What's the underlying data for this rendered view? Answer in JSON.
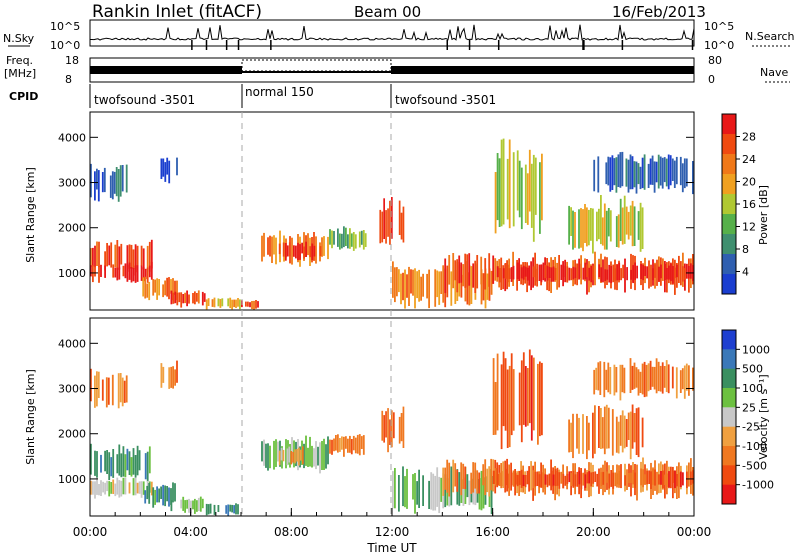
{
  "header": {
    "title": "Rankin Inlet (fitACF)",
    "beam": "Beam 00",
    "date": "16/Feb/2013"
  },
  "noise_panel": {
    "left_label": "N.Sky",
    "right_label": "N.Search",
    "left_ticks": [
      "10^5",
      "10^0"
    ],
    "right_ticks": [
      "10^5",
      "10^0"
    ]
  },
  "freq_panel": {
    "left_label_line1": "Freq.",
    "left_label_line2": "[MHz]",
    "right_label": "Nave",
    "left_ticks": [
      "18",
      "8"
    ],
    "right_ticks": [
      "80",
      "0"
    ]
  },
  "cpid": {
    "label": "CPID",
    "segments": [
      {
        "name": "twofsound -3501",
        "start_hour": 0,
        "end_hour": 6
      },
      {
        "name": "normal 150",
        "start_hour": 6,
        "end_hour": 12
      },
      {
        "name": "twofsound -3501",
        "start_hour": 12,
        "end_hour": 24
      }
    ]
  },
  "colors": {
    "power": [
      "#1a3ecf",
      "#2f5fb0",
      "#3f8f6f",
      "#56b04a",
      "#b0c832",
      "#f0a020",
      "#f07818",
      "#f04a10",
      "#e81818"
    ],
    "velocity": [
      "#1e3fd0",
      "#3a78b8",
      "#3a8f60",
      "#6cc040",
      "#c8c8c8",
      "#f0a040",
      "#f07820",
      "#f04a10",
      "#e81818"
    ]
  },
  "chart_data": [
    {
      "type": "heatmap",
      "panel": "power",
      "ylabel": "Slant Range [km]",
      "yticks": [
        1000,
        2000,
        3000,
        4000
      ],
      "ylim": [
        180,
        4560
      ],
      "xlim": [
        0,
        24
      ],
      "colorbar_label": "Power [dB]",
      "colorbar_ticks": [
        "4",
        "8",
        "12",
        "16",
        "20",
        "24",
        "28"
      ],
      "patches": [
        {
          "x": [
            0.0,
            2.5
          ],
          "y": [
            1000,
            1700
          ],
          "level": 7
        },
        {
          "x": [
            0.0,
            2.5
          ],
          "y": [
            800,
            1200
          ],
          "level": 8
        },
        {
          "x": [
            2.0,
            3.5
          ],
          "y": [
            400,
            900
          ],
          "level": 6
        },
        {
          "x": [
            3.2,
            4.6
          ],
          "y": [
            250,
            600
          ],
          "level": 7
        },
        {
          "x": [
            4.6,
            6.0
          ],
          "y": [
            200,
            450
          ],
          "level": 5
        },
        {
          "x": [
            6.0,
            6.8
          ],
          "y": [
            200,
            400
          ],
          "level": 7
        },
        {
          "x": [
            6.8,
            9.5
          ],
          "y": [
            1200,
            1900
          ],
          "level": 6
        },
        {
          "x": [
            7.5,
            9.2
          ],
          "y": [
            1300,
            1700
          ],
          "level": 8
        },
        {
          "x": [
            9.5,
            11.0
          ],
          "y": [
            1500,
            2000
          ],
          "level": 3
        },
        {
          "x": [
            11.5,
            12.5
          ],
          "y": [
            1600,
            2600
          ],
          "level": 7
        },
        {
          "x": [
            12.0,
            16.0
          ],
          "y": [
            300,
            1200
          ],
          "level": 6
        },
        {
          "x": [
            14.0,
            24.0
          ],
          "y": [
            600,
            1400
          ],
          "level": 7
        },
        {
          "x": [
            16.0,
            24.0
          ],
          "y": [
            800,
            1200
          ],
          "level": 8
        },
        {
          "x": [
            0.0,
            1.5
          ],
          "y": [
            2600,
            3400
          ],
          "level": 1
        },
        {
          "x": [
            2.8,
            3.5
          ],
          "y": [
            3000,
            3600
          ],
          "level": 1
        },
        {
          "x": [
            16.0,
            18.0
          ],
          "y": [
            1800,
            3800
          ],
          "level": 4
        },
        {
          "x": [
            19.0,
            22.0
          ],
          "y": [
            1500,
            2600
          ],
          "level": 4
        },
        {
          "x": [
            20.0,
            24.0
          ],
          "y": [
            2800,
            3600
          ],
          "level": 1
        }
      ]
    },
    {
      "type": "heatmap",
      "panel": "velocity",
      "ylabel": "Slant Range [km]",
      "yticks": [
        1000,
        2000,
        3000,
        4000
      ],
      "ylim": [
        180,
        4560
      ],
      "xlim": [
        0,
        24
      ],
      "colorbar_label": "Velocity [m s⁻¹]",
      "colorbar_ticks": [
        "1000",
        "500",
        "100",
        "25",
        "-25",
        "-100",
        "-500",
        "-1000"
      ],
      "xticks": [
        "00:00",
        "04:00",
        "08:00",
        "12:00",
        "16:00",
        "20:00",
        "00:00"
      ],
      "xlabel": "Time UT",
      "patches": [
        {
          "x": [
            0.0,
            2.5
          ],
          "y": [
            1000,
            1700
          ],
          "level": 2
        },
        {
          "x": [
            0.0,
            2.5
          ],
          "y": [
            600,
            1000
          ],
          "level": 4
        },
        {
          "x": [
            2.0,
            3.5
          ],
          "y": [
            400,
            900
          ],
          "level": 2
        },
        {
          "x": [
            3.2,
            4.6
          ],
          "y": [
            250,
            600
          ],
          "level": 3
        },
        {
          "x": [
            4.6,
            6.0
          ],
          "y": [
            200,
            450
          ],
          "level": 2
        },
        {
          "x": [
            6.8,
            9.5
          ],
          "y": [
            1200,
            1900
          ],
          "level": 3
        },
        {
          "x": [
            7.5,
            8.5
          ],
          "y": [
            1300,
            1700
          ],
          "level": 5
        },
        {
          "x": [
            9.5,
            11.0
          ],
          "y": [
            1500,
            2000
          ],
          "level": 6
        },
        {
          "x": [
            11.5,
            12.5
          ],
          "y": [
            1600,
            2600
          ],
          "level": 6
        },
        {
          "x": [
            12.0,
            16.0
          ],
          "y": [
            300,
            1200
          ],
          "level": 3
        },
        {
          "x": [
            14.0,
            24.0
          ],
          "y": [
            600,
            1400
          ],
          "level": 6
        },
        {
          "x": [
            16.0,
            24.0
          ],
          "y": [
            800,
            1200
          ],
          "level": 7
        },
        {
          "x": [
            0.0,
            1.5
          ],
          "y": [
            2600,
            3400
          ],
          "level": 6
        },
        {
          "x": [
            2.8,
            3.5
          ],
          "y": [
            3000,
            3600
          ],
          "level": 6
        },
        {
          "x": [
            16.0,
            18.0
          ],
          "y": [
            1800,
            3800
          ],
          "level": 7
        },
        {
          "x": [
            19.0,
            22.0
          ],
          "y": [
            1500,
            2600
          ],
          "level": 6
        },
        {
          "x": [
            20.0,
            24.0
          ],
          "y": [
            2800,
            3600
          ],
          "level": 6
        }
      ]
    }
  ]
}
